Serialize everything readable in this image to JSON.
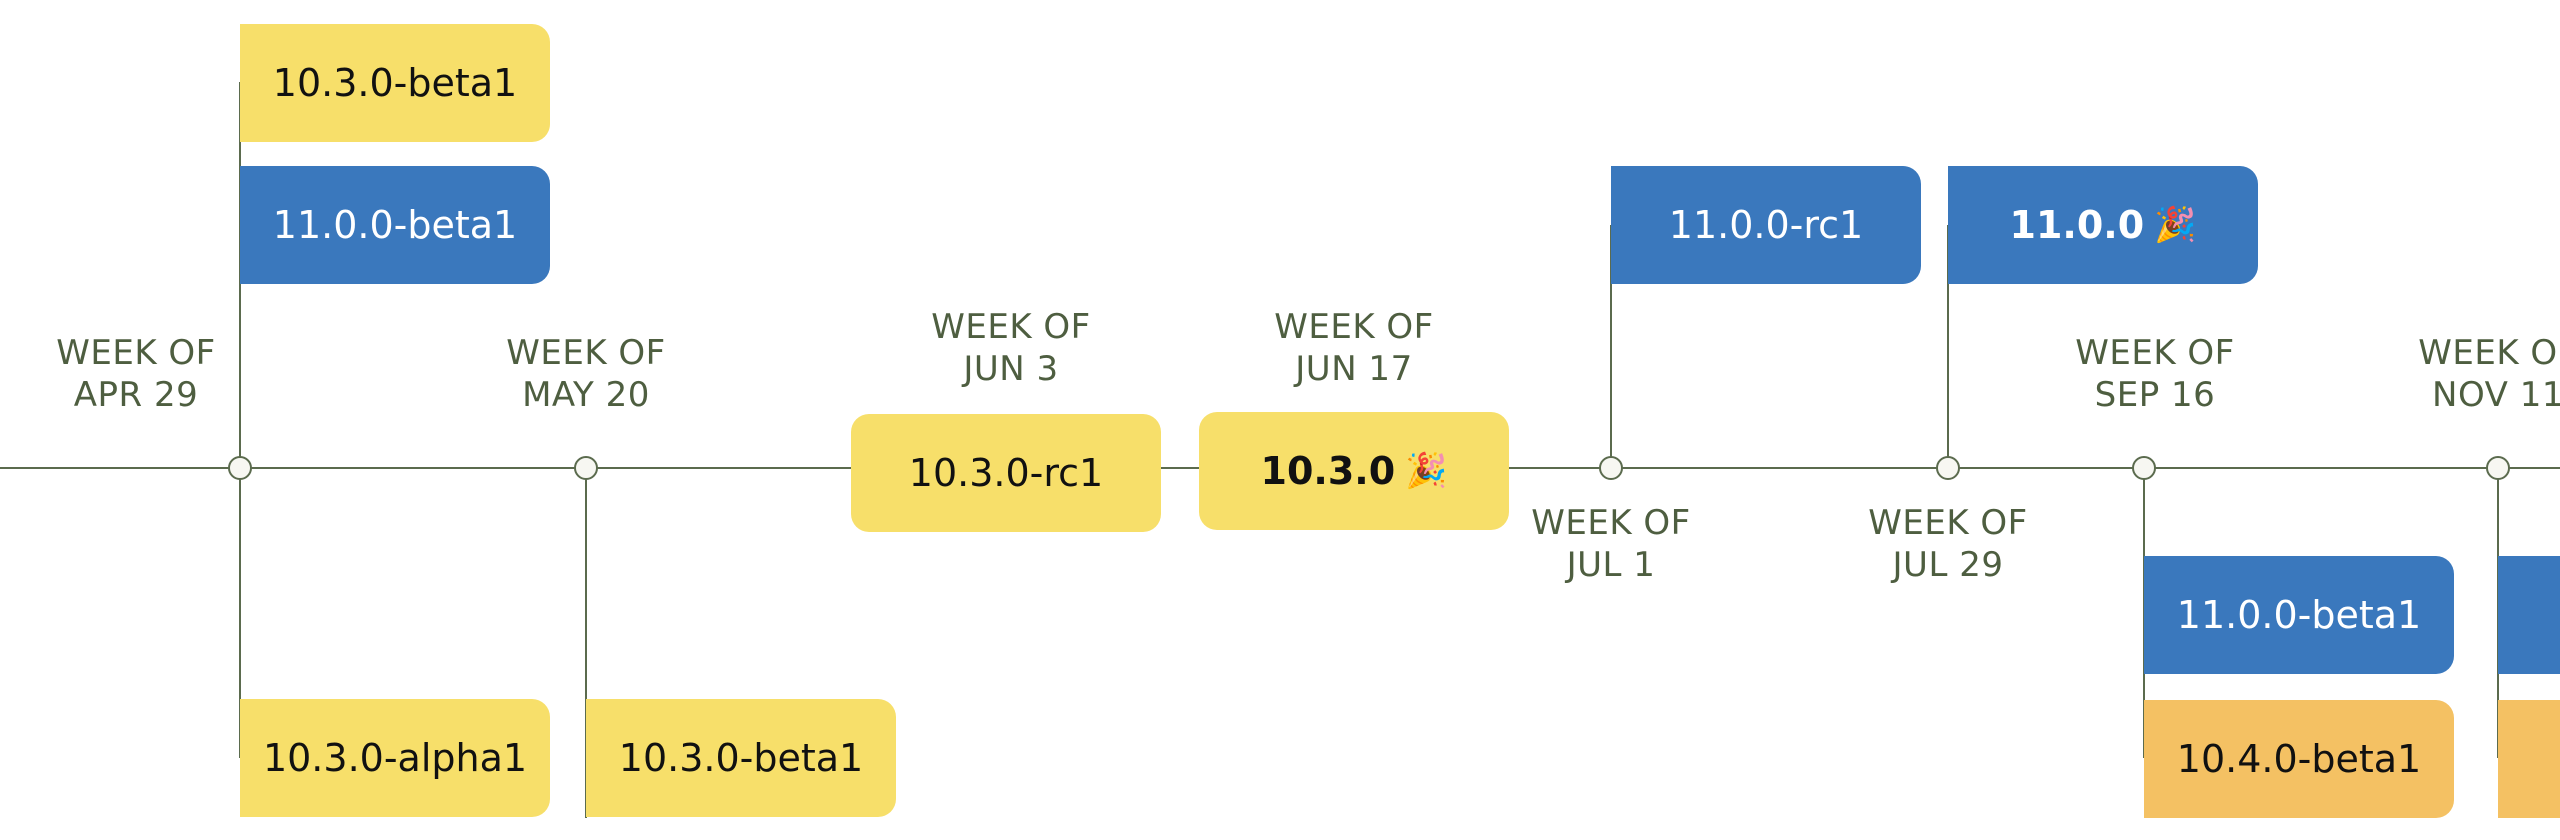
{
  "colors": {
    "line": "#5b6b4e",
    "label": "#4e5e40",
    "node_fill": "#f7f7f2",
    "yellow": "#f7df6a",
    "blue": "#3a78bd",
    "orange": "#f4c163",
    "dark_text": "#111111",
    "light_text": "#ffffff"
  },
  "milestones": [
    {
      "id": "apr29",
      "line1": "WEEK OF",
      "line2": "APR 29",
      "label_side": "above"
    },
    {
      "id": "may20",
      "line1": "WEEK OF",
      "line2": "MAY 20",
      "label_side": "above"
    },
    {
      "id": "jun3",
      "line1": "WEEK OF",
      "line2": "JUN 3",
      "label_side": "above"
    },
    {
      "id": "jun17",
      "line1": "WEEK OF",
      "line2": "JUN 17",
      "label_side": "above"
    },
    {
      "id": "jul1",
      "line1": "WEEK OF",
      "line2": "JUL 1",
      "label_side": "below"
    },
    {
      "id": "jul29",
      "line1": "WEEK OF",
      "line2": "JUL 29",
      "label_side": "below"
    },
    {
      "id": "sep16",
      "line1": "WEEK OF",
      "line2": "SEP 16",
      "label_side": "above"
    },
    {
      "id": "nov11",
      "line1": "WEEK OF",
      "line2": "NOV 11",
      "label_side": "above"
    }
  ],
  "releases": [
    {
      "milestone": "apr29",
      "label": "10.3.0-beta1",
      "color": "yellow",
      "bold": false,
      "emoji": ""
    },
    {
      "milestone": "apr29",
      "label": "11.0.0-beta1",
      "color": "blue",
      "bold": false,
      "emoji": ""
    },
    {
      "milestone": "apr29",
      "label": "10.3.0-alpha1",
      "color": "yellow",
      "bold": false,
      "emoji": ""
    },
    {
      "milestone": "may20",
      "label": "10.3.0-beta1",
      "color": "yellow",
      "bold": false,
      "emoji": ""
    },
    {
      "milestone": "jun3",
      "label": "10.3.0-rc1",
      "color": "yellow",
      "bold": false,
      "emoji": ""
    },
    {
      "milestone": "jun17",
      "label": "10.3.0",
      "color": "yellow",
      "bold": true,
      "emoji": "🎉"
    },
    {
      "milestone": "jul1",
      "label": "11.0.0-rc1",
      "color": "blue",
      "bold": false,
      "emoji": ""
    },
    {
      "milestone": "jul29",
      "label": "11.0.0",
      "color": "blue",
      "bold": true,
      "emoji": "🎉"
    },
    {
      "milestone": "sep16",
      "label": "11.0.0-beta1",
      "color": "blue",
      "bold": false,
      "emoji": ""
    },
    {
      "milestone": "sep16",
      "label": "10.4.0-beta1",
      "color": "orange",
      "bold": false,
      "emoji": ""
    },
    {
      "milestone": "nov11",
      "label": "",
      "color": "blue",
      "bold": false,
      "emoji": ""
    },
    {
      "milestone": "nov11",
      "label": "",
      "color": "orange",
      "bold": false,
      "emoji": ""
    }
  ]
}
